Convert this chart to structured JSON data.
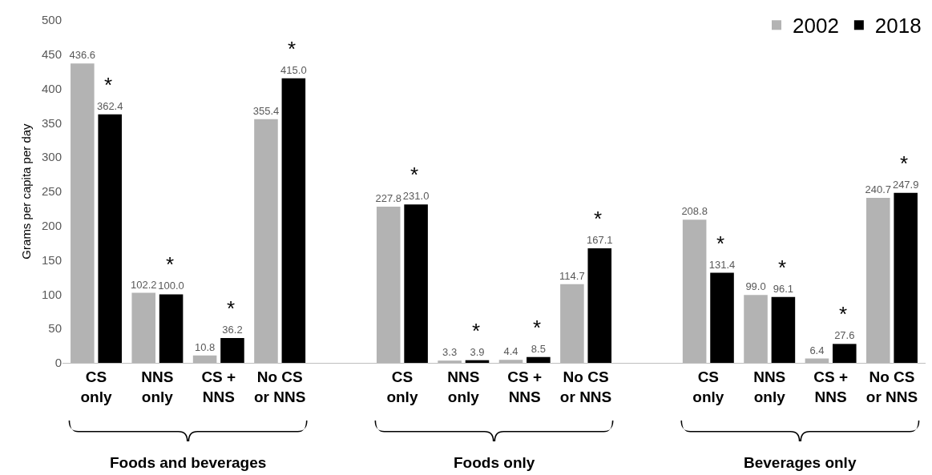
{
  "chart_data": {
    "type": "bar",
    "ylabel": "Grams per capita per day",
    "categories": [
      "CS only",
      "NNS only",
      "CS + NNS",
      "No CS or NNS",
      null,
      "CS only",
      "NNS only",
      "CS + NNS",
      "No CS or NNS",
      null,
      "CS only",
      "NNS only",
      "CS + NNS",
      "No CS or NNS"
    ],
    "series": [
      {
        "name": "2002",
        "color": "#b3b3b3",
        "values": [
          436.6,
          102.2,
          10.8,
          355.4,
          null,
          227.8,
          3.3,
          4.4,
          114.7,
          null,
          208.8,
          99.0,
          6.4,
          240.7
        ],
        "value_labels": [
          "436.6",
          "102.2",
          "10.8",
          "355.4",
          null,
          "227.8",
          "3.3",
          "4.4",
          "114.7",
          null,
          "208.8",
          "99.0",
          "6.4",
          "240.7"
        ]
      },
      {
        "name": "2018",
        "color": "#000000",
        "values": [
          362.4,
          100.0,
          36.2,
          415.0,
          null,
          231.0,
          3.9,
          8.5,
          167.1,
          null,
          131.4,
          96.1,
          27.6,
          247.9
        ],
        "value_labels": [
          "362.4",
          "100.0",
          "36.2",
          "415.0",
          null,
          "231.0",
          "3.9",
          "8.5",
          "167.1",
          null,
          "131.4",
          "96.1",
          "27.6",
          "247.9"
        ]
      }
    ],
    "ylim": [
      0,
      500
    ],
    "yticks": [
      0,
      50,
      100,
      150,
      200,
      250,
      300,
      350,
      400,
      450,
      500
    ],
    "grid": false,
    "legend": "top right",
    "annotations": [
      "*",
      "*",
      "*",
      "*",
      "*",
      "*",
      "*",
      "*",
      "*",
      "*",
      "*",
      "*",
      "Foods and beverages",
      "Foods only",
      "Beverages only"
    ]
  }
}
